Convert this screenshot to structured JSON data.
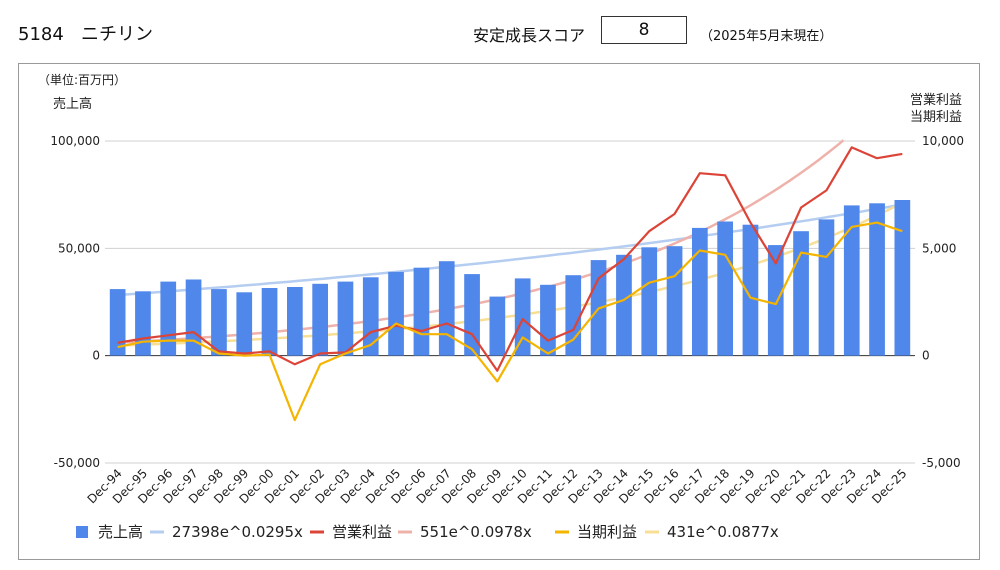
{
  "header": {
    "code_name": "5184   ニチリン",
    "score_label": "安定成長スコア",
    "score_value": "8",
    "as_of": "（2025年5月末現在）"
  },
  "chart_data": {
    "type": "bar",
    "unit_label": "（単位:百万円）",
    "y_left_label": "売上高",
    "y_right_label_line1": "営業利益",
    "y_right_label_line2": "当期利益",
    "ylim_left": [
      -50000,
      100000
    ],
    "ylim_right": [
      -5000,
      10000
    ],
    "left_ticks": [
      "-50,000",
      "0",
      "50,000",
      "100,000"
    ],
    "right_ticks": [
      "-5,000",
      "0",
      "5,000",
      "10,000"
    ],
    "categories": [
      "Dec-94",
      "Dec-95",
      "Dec-96",
      "Dec-97",
      "Dec-98",
      "Dec-99",
      "Dec-00",
      "Dec-01",
      "Dec-02",
      "Dec-03",
      "Dec-04",
      "Dec-05",
      "Dec-06",
      "Dec-07",
      "Dec-08",
      "Dec-09",
      "Dec-10",
      "Dec-11",
      "Dec-12",
      "Dec-13",
      "Dec-14",
      "Dec-15",
      "Dec-16",
      "Dec-17",
      "Dec-18",
      "Dec-19",
      "Dec-20",
      "Dec-21",
      "Dec-22",
      "Dec-23",
      "Dec-24",
      "Dec-25"
    ],
    "series": [
      {
        "name": "売上高",
        "kind": "bar",
        "axis": "left",
        "color": "#4f87ea",
        "values": [
          31000,
          30000,
          34500,
          35500,
          31000,
          29500,
          31500,
          32000,
          33500,
          34500,
          36500,
          39000,
          41000,
          44000,
          38000,
          27500,
          36000,
          33000,
          37500,
          44500,
          47000,
          50500,
          51000,
          59500,
          62500,
          61000,
          51500,
          58000,
          63500,
          70000,
          71000,
          72500
        ]
      },
      {
        "name": "営業利益",
        "kind": "line",
        "axis": "right",
        "color": "#db4437",
        "values": [
          600,
          800,
          950,
          1100,
          200,
          100,
          200,
          -400,
          100,
          150,
          1100,
          1400,
          1150,
          1500,
          1000,
          -700,
          1700,
          700,
          1200,
          3600,
          4500,
          5800,
          6600,
          8500,
          8400,
          6200,
          4300,
          6900,
          7700,
          9700,
          9200,
          9400
        ]
      },
      {
        "name": "当期利益",
        "kind": "line",
        "axis": "right",
        "color": "#f4b400",
        "values": [
          400,
          650,
          700,
          700,
          100,
          0,
          50,
          -3000,
          -400,
          100,
          500,
          1500,
          1000,
          1000,
          300,
          -1200,
          850,
          100,
          750,
          2200,
          2600,
          3400,
          3700,
          4900,
          4700,
          2700,
          2400,
          4800,
          4600,
          6000,
          6200,
          5800
        ]
      },
      {
        "name": "27398e^0.0295x",
        "kind": "trend",
        "axis": "left",
        "color": "#b4cdf0",
        "a": 27398,
        "b": 0.0295
      },
      {
        "name": "551e^0.0978x",
        "kind": "trend",
        "axis": "right",
        "color": "#eeb2ab",
        "a": 551,
        "b": 0.0978
      },
      {
        "name": "431e^0.0877x",
        "kind": "trend",
        "axis": "right",
        "color": "#f8df96",
        "a": 431,
        "b": 0.0877
      }
    ],
    "legend": [
      {
        "label": "売上高",
        "kind": "bar",
        "color": "#4f87ea"
      },
      {
        "label": "27398e^0.0295x",
        "kind": "line",
        "color": "#b4cdf0"
      },
      {
        "label": "営業利益",
        "kind": "line",
        "color": "#db4437"
      },
      {
        "label": "551e^0.0978x",
        "kind": "line",
        "color": "#eeb2ab"
      },
      {
        "label": "当期利益",
        "kind": "line",
        "color": "#f4b400"
      },
      {
        "label": "431e^0.0877x",
        "kind": "line",
        "color": "#f8df96"
      }
    ],
    "legend_position": "bottom",
    "grid": true
  }
}
